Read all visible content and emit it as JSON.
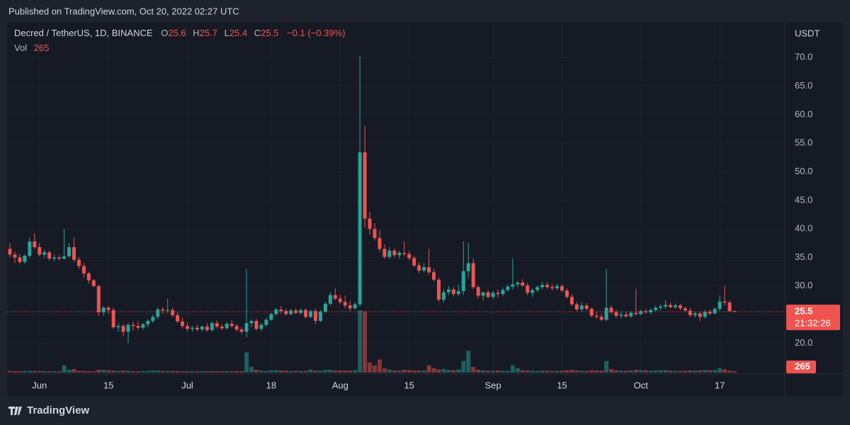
{
  "header": {
    "published": "Published on TradingView.com, Oct 20, 2022 02:27 UTC"
  },
  "footer": {
    "brand": "TradingView"
  },
  "chart_data": {
    "type": "candlestick",
    "title": "Decred / TetherUS, 1D, BINANCE",
    "legend_keys": [
      "O",
      "H",
      "L",
      "C"
    ],
    "change": "−0.1 (−0.39%)",
    "volume_title": "Vol",
    "price_unit": "USDT",
    "countdown": "21:32:26",
    "up_color": "#26a69a",
    "down_color": "#ef5350",
    "grid": true,
    "ylim": [
      14.6,
      76.1
    ],
    "yticks": [
      {
        "value": 20,
        "label": "20.0"
      },
      {
        "value": 25,
        "label": "25.0"
      },
      {
        "value": 30,
        "label": "30.0"
      },
      {
        "value": 35,
        "label": "35.0"
      },
      {
        "value": 40,
        "label": "40.0"
      },
      {
        "value": 45,
        "label": "45.0"
      },
      {
        "value": 50,
        "label": "50.0"
      },
      {
        "value": 55,
        "label": "55.0"
      },
      {
        "value": 60,
        "label": "60.0"
      },
      {
        "value": 65,
        "label": "65.0"
      },
      {
        "value": 70,
        "label": "70.0"
      }
    ],
    "xticks": [
      {
        "value": "2022-06-01",
        "label": "Jun"
      },
      {
        "value": "2022-06-15",
        "label": "15"
      },
      {
        "value": "2022-07-01",
        "label": "Jul"
      },
      {
        "value": "2022-07-18",
        "label": "18"
      },
      {
        "value": "2022-08-01",
        "label": "Aug"
      },
      {
        "value": "2022-08-15",
        "label": "15"
      },
      {
        "value": "2022-09-01",
        "label": "Sep"
      },
      {
        "value": "2022-09-15",
        "label": "15"
      },
      {
        "value": "2022-10-01",
        "label": "Oct"
      },
      {
        "value": "2022-10-17",
        "label": "17"
      }
    ],
    "x": [
      "2022-05-26",
      "2022-05-27",
      "2022-05-28",
      "2022-05-29",
      "2022-05-30",
      "2022-05-31",
      "2022-06-01",
      "2022-06-02",
      "2022-06-03",
      "2022-06-04",
      "2022-06-05",
      "2022-06-06",
      "2022-06-07",
      "2022-06-08",
      "2022-06-09",
      "2022-06-10",
      "2022-06-11",
      "2022-06-12",
      "2022-06-13",
      "2022-06-14",
      "2022-06-15",
      "2022-06-16",
      "2022-06-17",
      "2022-06-18",
      "2022-06-19",
      "2022-06-20",
      "2022-06-21",
      "2022-06-22",
      "2022-06-23",
      "2022-06-24",
      "2022-06-25",
      "2022-06-26",
      "2022-06-27",
      "2022-06-28",
      "2022-06-29",
      "2022-06-30",
      "2022-07-01",
      "2022-07-02",
      "2022-07-03",
      "2022-07-04",
      "2022-07-05",
      "2022-07-06",
      "2022-07-07",
      "2022-07-08",
      "2022-07-09",
      "2022-07-10",
      "2022-07-11",
      "2022-07-12",
      "2022-07-13",
      "2022-07-14",
      "2022-07-15",
      "2022-07-16",
      "2022-07-17",
      "2022-07-18",
      "2022-07-19",
      "2022-07-20",
      "2022-07-21",
      "2022-07-22",
      "2022-07-23",
      "2022-07-24",
      "2022-07-25",
      "2022-07-26",
      "2022-07-27",
      "2022-07-28",
      "2022-07-29",
      "2022-07-30",
      "2022-07-31",
      "2022-08-01",
      "2022-08-02",
      "2022-08-03",
      "2022-08-04",
      "2022-08-05",
      "2022-08-06",
      "2022-08-07",
      "2022-08-08",
      "2022-08-09",
      "2022-08-10",
      "2022-08-11",
      "2022-08-12",
      "2022-08-13",
      "2022-08-14",
      "2022-08-15",
      "2022-08-16",
      "2022-08-17",
      "2022-08-18",
      "2022-08-19",
      "2022-08-20",
      "2022-08-21",
      "2022-08-22",
      "2022-08-23",
      "2022-08-24",
      "2022-08-25",
      "2022-08-26",
      "2022-08-27",
      "2022-08-28",
      "2022-08-29",
      "2022-08-30",
      "2022-08-31",
      "2022-09-01",
      "2022-09-02",
      "2022-09-03",
      "2022-09-04",
      "2022-09-05",
      "2022-09-06",
      "2022-09-07",
      "2022-09-08",
      "2022-09-09",
      "2022-09-10",
      "2022-09-11",
      "2022-09-12",
      "2022-09-13",
      "2022-09-14",
      "2022-09-15",
      "2022-09-16",
      "2022-09-17",
      "2022-09-18",
      "2022-09-19",
      "2022-09-20",
      "2022-09-21",
      "2022-09-22",
      "2022-09-23",
      "2022-09-24",
      "2022-09-25",
      "2022-09-26",
      "2022-09-27",
      "2022-09-28",
      "2022-09-29",
      "2022-09-30",
      "2022-10-01",
      "2022-10-02",
      "2022-10-03",
      "2022-10-04",
      "2022-10-05",
      "2022-10-06",
      "2022-10-07",
      "2022-10-08",
      "2022-10-09",
      "2022-10-10",
      "2022-10-11",
      "2022-10-12",
      "2022-10-13",
      "2022-10-14",
      "2022-10-15",
      "2022-10-16",
      "2022-10-17",
      "2022-10-18",
      "2022-10-19",
      "2022-10-20"
    ],
    "open": [
      36.5,
      35.5,
      35,
      34.2,
      35.3,
      37.8,
      36.8,
      35.5,
      35.9,
      34.8,
      35,
      34.8,
      35.2,
      36.8,
      34.6,
      33.5,
      32.2,
      31,
      30,
      25.4,
      26.2,
      25.8,
      22.8,
      23,
      22,
      23.2,
      23,
      22.7,
      23.3,
      23.9,
      24.6,
      25.9,
      25.7,
      25.8,
      24.9,
      23.8,
      23,
      22.5,
      22.7,
      22.4,
      22.9,
      22.3,
      23.5,
      22.9,
      22.6,
      23.4,
      23,
      22.4,
      22,
      23.5,
      23.9,
      22.5,
      23.2,
      24.1,
      25.1,
      25.9,
      25.6,
      25.1,
      25.7,
      25.3,
      25.8,
      24.6,
      25.6,
      23.9,
      25.5,
      26.9,
      28.4,
      27.8,
      27.2,
      26.6,
      26.1,
      26.8,
      53.4,
      41.8,
      40,
      38.4,
      36.5,
      35.1,
      36.2,
      35.4,
      35.8,
      35.6,
      34.9,
      33.6,
      32.7,
      33.3,
      32.4,
      31.1,
      27.6,
      28.9,
      29.4,
      28.6,
      29.1,
      32.6,
      34,
      29.8,
      28.3,
      28.9,
      28.1,
      28.8,
      28.6,
      29.3,
      29.9,
      30.3,
      30.6,
      30.1,
      28.8,
      29.3,
      29.8,
      30.2,
      29.8,
      29.6,
      30,
      29.2,
      28.1,
      26.8,
      25.9,
      26.6,
      26,
      24.8,
      24.6,
      24.1,
      26.2,
      25.4,
      24.8,
      25,
      24.7,
      25.3,
      25.1,
      25.6,
      25.4,
      25.8,
      26.2,
      26.4,
      26.7,
      26.3,
      26.6,
      26.1,
      25.7,
      24.9,
      25.2,
      24.6,
      25.5,
      25.2,
      26,
      27.3,
      27.1,
      25.6
    ],
    "high": [
      37.5,
      36,
      35.6,
      35.6,
      38.5,
      39.2,
      37.5,
      36.4,
      36.2,
      35.5,
      35.4,
      40,
      37.5,
      38.5,
      35,
      34,
      32.5,
      31.2,
      30.2,
      26.5,
      26.5,
      26.2,
      23.5,
      23.4,
      23.5,
      23.8,
      23.8,
      23.5,
      24.2,
      25,
      26.3,
      26.3,
      27.8,
      26.2,
      25.4,
      24.5,
      23.6,
      23,
      23.2,
      23.1,
      23.5,
      23.8,
      24,
      23.3,
      23.7,
      24,
      23.4,
      22.8,
      33,
      24.2,
      24.3,
      23.6,
      24.4,
      25.3,
      26.2,
      26.5,
      26,
      26,
      26.1,
      26,
      26.1,
      25.9,
      26,
      25.8,
      27.2,
      28.9,
      29.6,
      28.5,
      28.3,
      27.4,
      27.2,
      70.3,
      58,
      43,
      41,
      39.8,
      37.3,
      36.8,
      36.6,
      36.2,
      37.8,
      36.1,
      35.3,
      34.2,
      34,
      36.5,
      33,
      31.5,
      29.5,
      30,
      29.8,
      30.2,
      37.8,
      37.5,
      34.8,
      30,
      29,
      29.3,
      29.1,
      29.4,
      29.7,
      30.3,
      34.8,
      30.9,
      31.2,
      30.6,
      29.6,
      30.1,
      30.8,
      30.7,
      30.3,
      30.4,
      30.3,
      29.6,
      28.6,
      27.2,
      27.1,
      27,
      26.3,
      25.5,
      25.1,
      33,
      26.6,
      25.8,
      25.5,
      25.6,
      25.6,
      29.5,
      25.9,
      26,
      26.1,
      26.6,
      26.8,
      27.5,
      27.1,
      26.9,
      26.9,
      26.4,
      26.2,
      25.5,
      25.6,
      25.8,
      25.9,
      26.3,
      28.3,
      30,
      27.5,
      25.7
    ],
    "low": [
      35,
      34,
      33.8,
      33.9,
      35,
      36.5,
      35.2,
      34.9,
      34.5,
      34.3,
      34.5,
      34.6,
      35,
      34.2,
      33,
      31.5,
      30.5,
      29.8,
      24.8,
      24.8,
      25.2,
      22.5,
      22,
      21.2,
      20,
      22.2,
      22.3,
      22.3,
      22.8,
      23.5,
      24.2,
      25.2,
      25.3,
      24.6,
      23.6,
      22.6,
      22.1,
      22,
      22.1,
      22,
      22,
      22,
      22.6,
      22.3,
      22.4,
      22.7,
      22,
      21.6,
      21,
      22.8,
      22.2,
      22.1,
      22.9,
      23.9,
      24.8,
      25.2,
      24.8,
      24.9,
      25.1,
      25,
      24.3,
      24.4,
      23.3,
      23.7,
      25.3,
      26.6,
      27.5,
      26.9,
      26.1,
      25.6,
      25.9,
      26.4,
      40.2,
      39,
      38,
      36,
      34.8,
      34.7,
      35,
      34.8,
      35.2,
      34.5,
      33.3,
      32.2,
      32.4,
      32,
      30.8,
      27.2,
      27.1,
      28.4,
      28.2,
      28.2,
      28.4,
      31.4,
      29.4,
      27.8,
      27.4,
      27.8,
      27.7,
      28,
      28.2,
      29,
      29.4,
      29.8,
      29.9,
      28.4,
      28.1,
      28.9,
      29.4,
      29.5,
      29.2,
      29.3,
      28.9,
      27.8,
      26.5,
      25.6,
      25.5,
      25.7,
      24.5,
      24.2,
      23.8,
      23.8,
      25.1,
      24.4,
      24.3,
      24.4,
      24.4,
      24.8,
      24.9,
      25.2,
      25.1,
      25.5,
      25.8,
      26,
      26.1,
      26,
      25.8,
      25.4,
      24.6,
      24.5,
      23.8,
      24.3,
      24.9,
      25,
      25.6,
      26.6,
      25.4,
      25.4
    ],
    "close": [
      35.5,
      35,
      34.2,
      35.3,
      37.8,
      36.8,
      35.5,
      35.9,
      34.8,
      35,
      34.8,
      35.2,
      36.8,
      34.6,
      33.5,
      32.2,
      31,
      30,
      25.4,
      26.2,
      25.8,
      22.8,
      23,
      22,
      23.2,
      23,
      22.7,
      23.3,
      23.9,
      24.6,
      25.9,
      25.7,
      25.8,
      24.9,
      23.8,
      23,
      22.5,
      22.7,
      22.4,
      22.9,
      22.3,
      23.5,
      22.9,
      22.6,
      23.4,
      23,
      22.4,
      22,
      23.5,
      23.9,
      22.5,
      23.2,
      24.1,
      25.1,
      25.9,
      25.6,
      25.1,
      25.7,
      25.3,
      25.8,
      24.6,
      25.6,
      23.9,
      25.5,
      26.9,
      28.4,
      27.8,
      27.2,
      26.6,
      26.1,
      26.8,
      53.4,
      41.8,
      40,
      38.4,
      36.5,
      35.1,
      36.2,
      35.4,
      35.8,
      35.6,
      34.9,
      33.6,
      32.7,
      33.3,
      32.4,
      31.1,
      27.6,
      28.9,
      29.4,
      28.6,
      29.1,
      32.6,
      34,
      29.8,
      28.3,
      28.9,
      28.1,
      28.8,
      28.6,
      29.3,
      29.9,
      30.3,
      30.6,
      30.1,
      28.8,
      29.3,
      29.8,
      30.2,
      29.8,
      29.6,
      30,
      29.2,
      28.1,
      26.8,
      25.9,
      26.6,
      26,
      24.8,
      24.6,
      24.1,
      26.2,
      25.4,
      24.8,
      25,
      24.7,
      25.3,
      25.1,
      25.6,
      25.4,
      25.8,
      26.2,
      26.4,
      26.7,
      26.3,
      26.6,
      26.1,
      25.7,
      24.9,
      25.2,
      24.6,
      25.5,
      25.2,
      26,
      27.3,
      27.1,
      25.6,
      25.5
    ],
    "volume": [
      300,
      260,
      220,
      280,
      340,
      300,
      280,
      250,
      230,
      260,
      220,
      1300,
      520,
      640,
      330,
      300,
      260,
      240,
      520,
      480,
      420,
      360,
      300,
      380,
      320,
      260,
      240,
      280,
      300,
      420,
      360,
      300,
      280,
      300,
      260,
      240,
      230,
      220,
      210,
      250,
      230,
      260,
      240,
      220,
      250,
      230,
      260,
      240,
      3640,
      1040,
      520,
      360,
      300,
      420,
      460,
      380,
      340,
      300,
      320,
      280,
      300,
      540,
      360,
      340,
      480,
      520,
      400,
      380,
      360,
      340,
      420,
      11200,
      11000,
      1820,
      1300,
      2340,
      780,
      560,
      420,
      360,
      520,
      440,
      400,
      360,
      380,
      1300,
      780,
      560,
      640,
      480,
      420,
      560,
      2080,
      3900,
      1040,
      520,
      400,
      360,
      340,
      380,
      320,
      300,
      1300,
      780,
      420,
      380,
      340,
      300,
      360,
      340,
      300,
      320,
      360,
      420,
      480,
      380,
      340,
      300,
      420,
      380,
      360,
      2080,
      620,
      420,
      360,
      340,
      380,
      520,
      460,
      420,
      340,
      380,
      420,
      440,
      360,
      320,
      300,
      340,
      380,
      360,
      420,
      480,
      400,
      460,
      780,
      600,
      340,
      265
    ]
  }
}
